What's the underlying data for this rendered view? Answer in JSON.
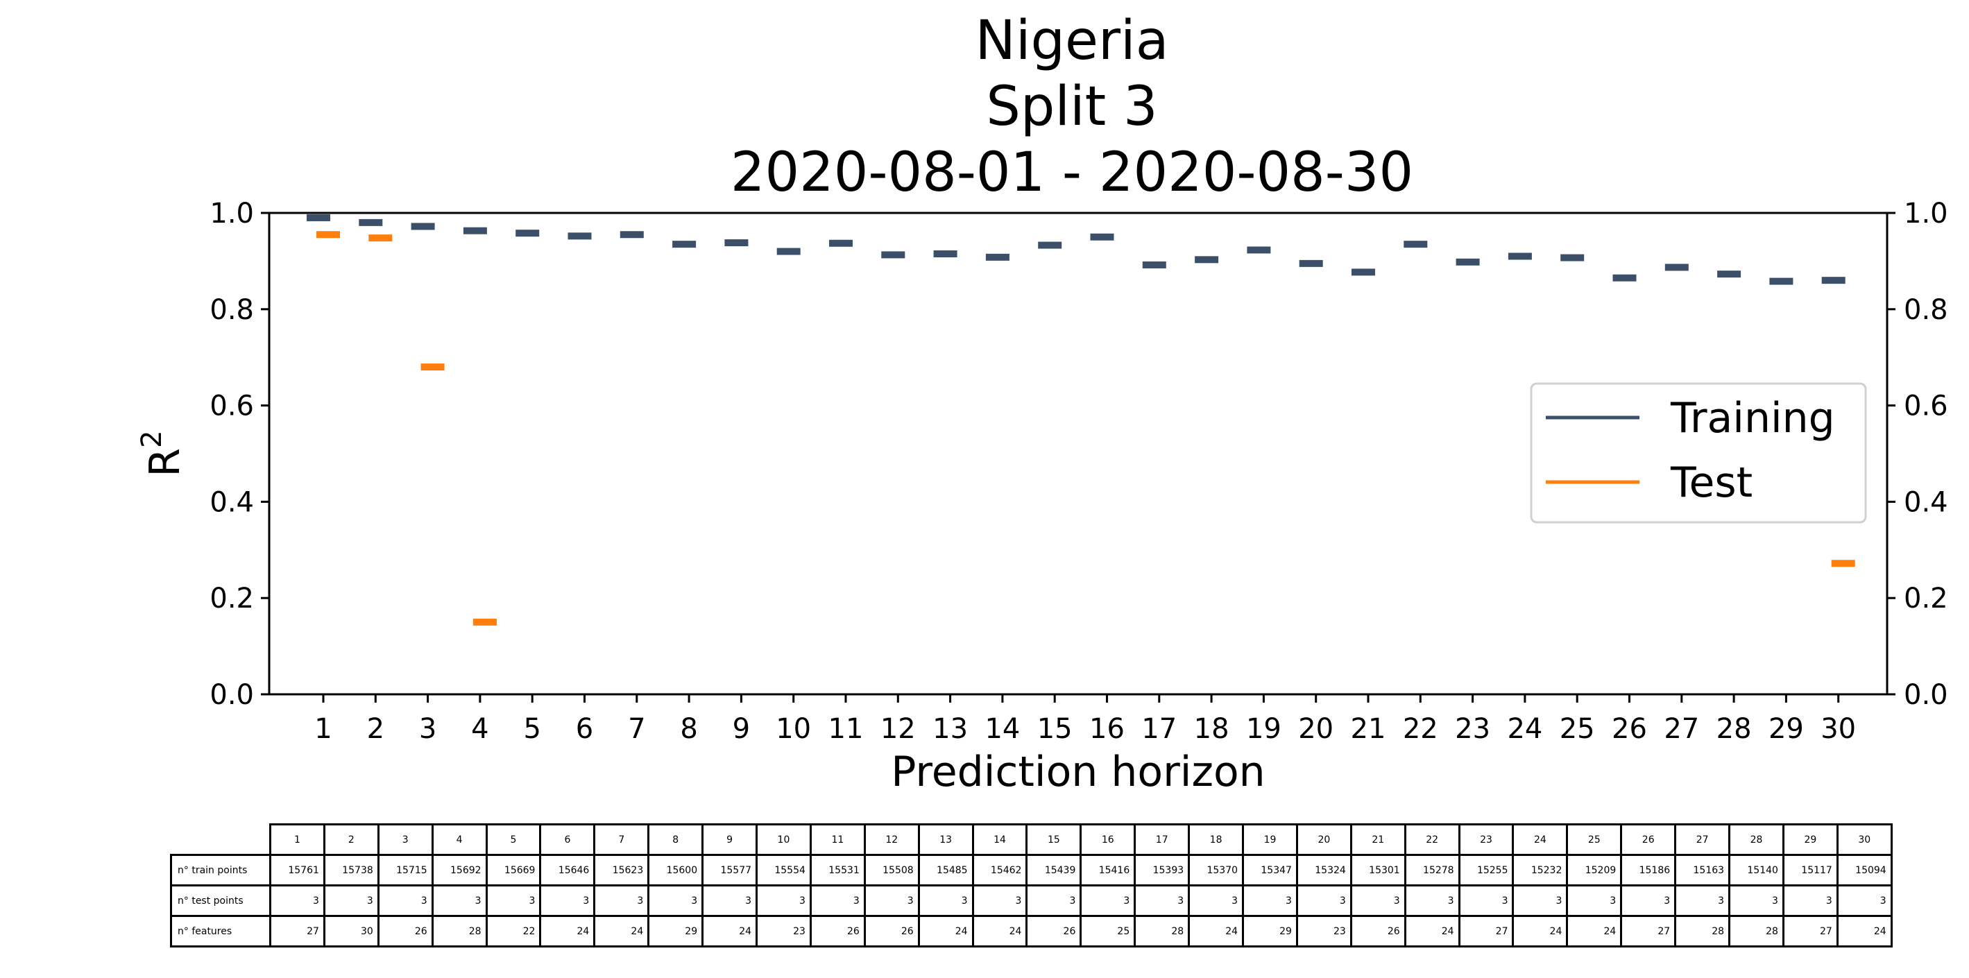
{
  "chart_data": {
    "type": "scatter",
    "title_lines": [
      "Nigeria",
      "Split 3",
      "2020-08-01 - 2020-08-30"
    ],
    "xlabel": "Prediction horizon",
    "ylabel": "R",
    "ylabel_sup": "2",
    "ylim": [
      0,
      1
    ],
    "yticks": [
      "0.0",
      "0.2",
      "0.4",
      "0.6",
      "0.8",
      "1.0"
    ],
    "categories": [
      "1",
      "2",
      "3",
      "4",
      "5",
      "6",
      "7",
      "8",
      "9",
      "10",
      "11",
      "12",
      "13",
      "14",
      "15",
      "16",
      "17",
      "18",
      "19",
      "20",
      "21",
      "22",
      "23",
      "24",
      "25",
      "26",
      "27",
      "28",
      "29",
      "30"
    ],
    "series": [
      {
        "name": "Training",
        "color": "#3b5068",
        "values": [
          0.99,
          0.98,
          0.972,
          0.963,
          0.958,
          0.952,
          0.955,
          0.935,
          0.938,
          0.92,
          0.937,
          0.913,
          0.915,
          0.908,
          0.933,
          0.95,
          0.892,
          0.903,
          0.923,
          0.895,
          0.877,
          0.935,
          0.898,
          0.91,
          0.907,
          0.865,
          0.887,
          0.873,
          0.858,
          0.86
        ]
      },
      {
        "name": "Test",
        "color": "#ff7f0e",
        "values": [
          0.955,
          0.948,
          0.68,
          0.15,
          null,
          null,
          null,
          null,
          null,
          null,
          null,
          null,
          null,
          null,
          null,
          null,
          null,
          null,
          null,
          null,
          null,
          null,
          null,
          null,
          null,
          null,
          null,
          null,
          null,
          0.272
        ]
      }
    ],
    "legend_position": "center-right"
  },
  "table": {
    "columns": [
      "1",
      "2",
      "3",
      "4",
      "5",
      "6",
      "7",
      "8",
      "9",
      "10",
      "11",
      "12",
      "13",
      "14",
      "15",
      "16",
      "17",
      "18",
      "19",
      "20",
      "21",
      "22",
      "23",
      "24",
      "25",
      "26",
      "27",
      "28",
      "29",
      "30"
    ],
    "rows": [
      {
        "label": "n° train points",
        "values": [
          "15761",
          "15738",
          "15715",
          "15692",
          "15669",
          "15646",
          "15623",
          "15600",
          "15577",
          "15554",
          "15531",
          "15508",
          "15485",
          "15462",
          "15439",
          "15416",
          "15393",
          "15370",
          "15347",
          "15324",
          "15301",
          "15278",
          "15255",
          "15232",
          "15209",
          "15186",
          "15163",
          "15140",
          "15117",
          "15094"
        ]
      },
      {
        "label": "n° test points",
        "values": [
          "3",
          "3",
          "3",
          "3",
          "3",
          "3",
          "3",
          "3",
          "3",
          "3",
          "3",
          "3",
          "3",
          "3",
          "3",
          "3",
          "3",
          "3",
          "3",
          "3",
          "3",
          "3",
          "3",
          "3",
          "3",
          "3",
          "3",
          "3",
          "3",
          "3"
        ]
      },
      {
        "label": "n° features",
        "values": [
          "27",
          "30",
          "26",
          "28",
          "22",
          "24",
          "24",
          "29",
          "24",
          "23",
          "26",
          "26",
          "24",
          "24",
          "26",
          "25",
          "28",
          "24",
          "29",
          "23",
          "26",
          "24",
          "27",
          "24",
          "24",
          "27",
          "28",
          "28",
          "27",
          "24"
        ]
      }
    ]
  }
}
